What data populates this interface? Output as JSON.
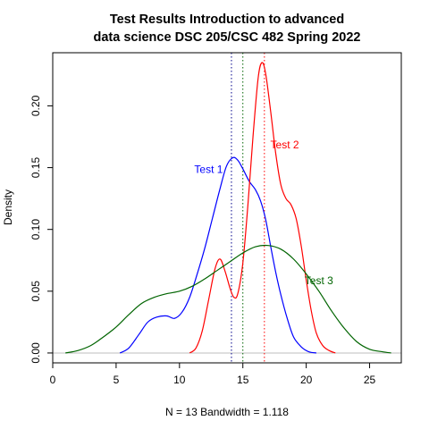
{
  "chart_data": {
    "type": "line",
    "title_lines": [
      "Test Results Introduction to advanced",
      "data science DSC 205/CSC 482 Spring 2022"
    ],
    "xlabel": "N = 13   Bandwidth = 1.118",
    "ylabel": "Density",
    "xlim": [
      0,
      27.5
    ],
    "ylim": [
      -0.008,
      0.243
    ],
    "x_ticks": [
      0,
      5,
      10,
      15,
      20,
      25
    ],
    "x_tick_labels": [
      "0",
      "5",
      "10",
      "15",
      "20",
      "25"
    ],
    "y_ticks": [
      0.0,
      0.05,
      0.1,
      0.15,
      0.2
    ],
    "y_tick_labels": [
      "0.00",
      "0.05",
      "0.10",
      "0.15",
      "0.20"
    ],
    "baseline": {
      "y": 0,
      "color": "#bebebe"
    },
    "series": [
      {
        "name": "Test 1",
        "color": "#0000ff",
        "label_at": [
          12.3,
          0.148
        ],
        "points": [
          [
            5.3,
            0.0
          ],
          [
            6.0,
            0.004
          ],
          [
            6.8,
            0.015
          ],
          [
            7.5,
            0.025
          ],
          [
            8.2,
            0.029
          ],
          [
            9.0,
            0.03
          ],
          [
            9.6,
            0.028
          ],
          [
            10.2,
            0.033
          ],
          [
            10.8,
            0.045
          ],
          [
            11.4,
            0.064
          ],
          [
            12.0,
            0.085
          ],
          [
            12.6,
            0.109
          ],
          [
            13.2,
            0.133
          ],
          [
            13.7,
            0.151
          ],
          [
            14.2,
            0.158
          ],
          [
            14.6,
            0.156
          ],
          [
            15.0,
            0.149
          ],
          [
            15.5,
            0.139
          ],
          [
            16.0,
            0.132
          ],
          [
            16.4,
            0.123
          ],
          [
            16.8,
            0.108
          ],
          [
            17.2,
            0.086
          ],
          [
            17.6,
            0.065
          ],
          [
            18.0,
            0.047
          ],
          [
            18.5,
            0.028
          ],
          [
            19.0,
            0.013
          ],
          [
            19.6,
            0.005
          ],
          [
            20.2,
            0.001
          ],
          [
            20.8,
            0.0
          ]
        ]
      },
      {
        "name": "Test 2",
        "color": "#ff0000",
        "label_at": [
          18.3,
          0.168
        ],
        "points": [
          [
            10.8,
            0.0
          ],
          [
            11.3,
            0.004
          ],
          [
            11.8,
            0.018
          ],
          [
            12.3,
            0.043
          ],
          [
            12.8,
            0.068
          ],
          [
            13.2,
            0.076
          ],
          [
            13.6,
            0.066
          ],
          [
            14.0,
            0.052
          ],
          [
            14.3,
            0.045
          ],
          [
            14.6,
            0.048
          ],
          [
            15.0,
            0.073
          ],
          [
            15.4,
            0.12
          ],
          [
            15.8,
            0.175
          ],
          [
            16.2,
            0.222
          ],
          [
            16.5,
            0.235
          ],
          [
            16.8,
            0.226
          ],
          [
            17.2,
            0.195
          ],
          [
            17.6,
            0.161
          ],
          [
            18.0,
            0.136
          ],
          [
            18.4,
            0.125
          ],
          [
            18.8,
            0.12
          ],
          [
            19.2,
            0.109
          ],
          [
            19.6,
            0.087
          ],
          [
            20.0,
            0.059
          ],
          [
            20.4,
            0.034
          ],
          [
            20.8,
            0.016
          ],
          [
            21.3,
            0.006
          ],
          [
            21.8,
            0.002
          ],
          [
            22.3,
            0.0
          ]
        ]
      },
      {
        "name": "Test 3",
        "color": "#006400",
        "label_at": [
          21.0,
          0.058
        ],
        "points": [
          [
            1.0,
            0.0
          ],
          [
            2.0,
            0.002
          ],
          [
            3.0,
            0.006
          ],
          [
            4.0,
            0.013
          ],
          [
            5.0,
            0.021
          ],
          [
            6.0,
            0.031
          ],
          [
            7.0,
            0.04
          ],
          [
            8.0,
            0.045
          ],
          [
            9.0,
            0.048
          ],
          [
            10.0,
            0.05
          ],
          [
            11.0,
            0.054
          ],
          [
            12.0,
            0.06
          ],
          [
            13.0,
            0.067
          ],
          [
            14.0,
            0.074
          ],
          [
            15.0,
            0.081
          ],
          [
            16.0,
            0.086
          ],
          [
            17.0,
            0.087
          ],
          [
            18.0,
            0.084
          ],
          [
            19.0,
            0.076
          ],
          [
            20.0,
            0.064
          ],
          [
            21.0,
            0.05
          ],
          [
            22.0,
            0.034
          ],
          [
            23.0,
            0.02
          ],
          [
            24.0,
            0.009
          ],
          [
            25.0,
            0.003
          ],
          [
            26.0,
            0.001
          ],
          [
            26.7,
            0.0
          ]
        ]
      }
    ],
    "vlines": [
      {
        "x": 14.1,
        "color": "#00008b",
        "dash": "dotted"
      },
      {
        "x": 15.0,
        "color": "#006400",
        "dash": "dotted"
      },
      {
        "x": 16.7,
        "color": "#ff0000",
        "dash": "dotted"
      }
    ]
  }
}
